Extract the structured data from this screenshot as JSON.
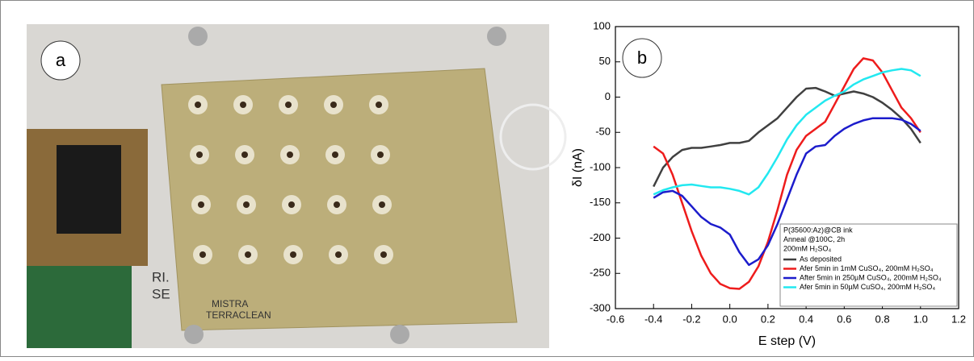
{
  "panel_a": {
    "label": "a",
    "texts": [
      "RI.",
      "SE",
      "MISTRA",
      "TERRACLEAN"
    ]
  },
  "chart_data": {
    "type": "line",
    "panel_label": "b",
    "x_label": "E step (V)",
    "y_label": "δI (nA)",
    "xlim": [
      -0.6,
      1.2
    ],
    "ylim": [
      -300,
      100
    ],
    "xticks": [
      -0.6,
      -0.4,
      -0.2,
      {
        "value": 0,
        "label": "0.0"
      },
      0.2,
      0.4,
      0.6,
      0.8,
      {
        "value": 1,
        "label": "1.0"
      },
      1.2
    ],
    "yticks": [
      100,
      50,
      0,
      -50,
      -100,
      -150,
      -200,
      -250,
      -300
    ],
    "legend_title": [
      "P(35600:Az)@CB ink",
      "Anneal @100C, 2h",
      "200mM H₂SO₄"
    ],
    "x": [
      -0.4,
      -0.35,
      -0.3,
      -0.25,
      -0.2,
      -0.15,
      -0.1,
      -0.05,
      0,
      0.05,
      0.1,
      0.15,
      0.2,
      0.25,
      0.3,
      0.35,
      0.4,
      0.45,
      0.5,
      0.55,
      0.6,
      0.65,
      0.7,
      0.75,
      0.8,
      0.85,
      0.9,
      0.95,
      1.0
    ],
    "series": [
      {
        "name": "As deposited",
        "color": "#404040",
        "values": [
          -127,
          -100,
          -85,
          -75,
          -72,
          -72,
          -70,
          -68,
          -65,
          -65,
          -62,
          -50,
          -40,
          -30,
          -15,
          0,
          12,
          13,
          8,
          2,
          5,
          8,
          5,
          0,
          -8,
          -18,
          -30,
          -45,
          -65
        ]
      },
      {
        "name": "Afer 5min in 1mM CuSO₄, 200mM H₂SO₄",
        "color": "#ee1c1c",
        "values": [
          -70,
          -80,
          -110,
          -150,
          -190,
          -225,
          -250,
          -265,
          -271,
          -272,
          -262,
          -240,
          -205,
          -160,
          -110,
          -75,
          -55,
          -45,
          -35,
          -10,
          15,
          40,
          55,
          52,
          35,
          10,
          -15,
          -30,
          -50
        ]
      },
      {
        "name": "After 5min in 250µM CuSO₄, 200mM H₂SO₄",
        "color": "#1c1ccc",
        "values": [
          -143,
          -135,
          -133,
          -140,
          -155,
          -170,
          -180,
          -185,
          -195,
          -220,
          -238,
          -230,
          -210,
          -180,
          -145,
          -110,
          -80,
          -70,
          -68,
          -55,
          -45,
          -38,
          -33,
          -30,
          -30,
          -30,
          -32,
          -38,
          -48
        ]
      },
      {
        "name": "Afer 5min in 50µM CuSO₄, 200mM H₂SO₄",
        "color": "#22e8f0",
        "values": [
          -138,
          -132,
          -128,
          -125,
          -124,
          -126,
          -128,
          -128,
          -130,
          -133,
          -138,
          -128,
          -108,
          -85,
          -60,
          -40,
          -25,
          -15,
          -5,
          2,
          8,
          18,
          25,
          30,
          35,
          38,
          40,
          38,
          30
        ]
      }
    ]
  }
}
